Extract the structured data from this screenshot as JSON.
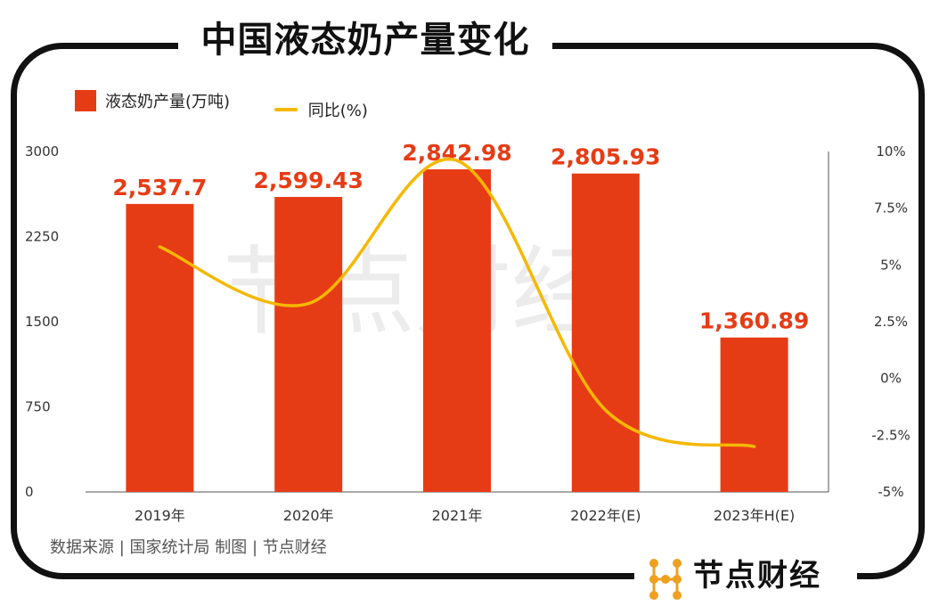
{
  "title": "中国液态奶产量变化",
  "source": "数据来源 | 国家统计局 制图 | 节点财经",
  "brand": "节点财经",
  "watermark": "节点财经",
  "colors": {
    "bar": "#e63c16",
    "line": "#f5b800",
    "frame": "#111111"
  },
  "chart_data": {
    "type": "bar",
    "categories": [
      "2019年",
      "2020年",
      "2021年",
      "2022年(E)",
      "2023年H(E)"
    ],
    "series": [
      {
        "name": "液态奶产量(万吨)",
        "type": "bar",
        "axis": "left",
        "values": [
          2537.7,
          2599.43,
          2842.98,
          2805.93,
          1360.89
        ],
        "labels": [
          "2,537.7",
          "2,599.43",
          "2,842.98",
          "2,805.93",
          "1,360.89"
        ]
      },
      {
        "name": "同比(%)",
        "type": "line",
        "axis": "right",
        "values": [
          5.8,
          3.3,
          9.6,
          -1.4,
          -3.0
        ]
      }
    ],
    "y_left": {
      "range": [
        0,
        3000
      ],
      "ticks": [
        "0",
        "750",
        "1500",
        "2250",
        "3000"
      ]
    },
    "y_right": {
      "range": [
        -5,
        10
      ],
      "ticks": [
        "-5%",
        "-2.5%",
        "0%",
        "2.5%",
        "5%",
        "7.5%",
        "10%"
      ]
    },
    "legend": "top-left",
    "grid": false
  }
}
